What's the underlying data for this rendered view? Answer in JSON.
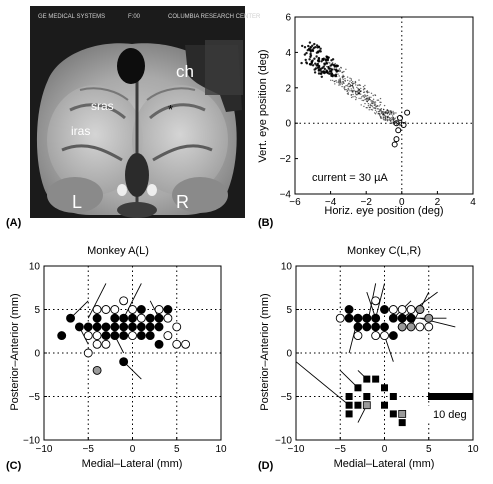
{
  "panels": {
    "A": {
      "label": "(A)",
      "header_left": "GE MEDICAL SYSTEMS",
      "header_mid": "F:00",
      "header_right": "COLUMBIA RESEARCH CENTER",
      "annotations": [
        "ch",
        "sras",
        "iras",
        "*",
        "L",
        "R"
      ]
    },
    "B": {
      "label": "(B)",
      "current_text": "current = 30 µA"
    },
    "C": {
      "label": "(C)"
    },
    "D": {
      "label": "(D)",
      "scale_bar_text": "10 deg"
    }
  },
  "chart_data": [
    {
      "panel": "B",
      "type": "scatter",
      "xlabel": "Horiz. eye position (deg)",
      "ylabel": "Vert. eye position (deg)",
      "xlim": [
        -6,
        4
      ],
      "ylim": [
        -4,
        6
      ],
      "xticks": [
        -6,
        -4,
        -2,
        0,
        2,
        4
      ],
      "yticks": [
        -4,
        -2,
        0,
        2,
        4,
        6
      ],
      "reference_lines": "dotted lines at x = 0 and y = 0",
      "evoked_endpoints_cluster": {
        "from": [
          -0.2,
          0.0
        ],
        "to": [
          -5.2,
          4.0
        ],
        "marker": "small dots"
      },
      "fixation_points": [
        [
          0.3,
          0.6
        ],
        [
          -0.1,
          0.3
        ],
        [
          -0.2,
          -0.4
        ],
        [
          -0.3,
          -0.9
        ],
        [
          -0.4,
          -1.2
        ],
        [
          0.1,
          -0.1
        ],
        [
          -0.3,
          0.0
        ]
      ]
    },
    {
      "panel": "C",
      "type": "scatter",
      "title": "Monkey A(L)",
      "xlabel": "Medial–Lateral (mm)",
      "ylabel": "Posterior–Anterior (mm)",
      "xlim": [
        -10,
        10
      ],
      "ylim": [
        -10,
        10
      ],
      "xticks": [
        -10,
        -5,
        0,
        5,
        10
      ],
      "yticks": [
        -10,
        -5,
        0,
        5,
        10
      ],
      "grid": "dotted",
      "filled": [
        [
          -8,
          2
        ],
        [
          -7,
          4
        ],
        [
          -6,
          3
        ],
        [
          -5,
          3
        ],
        [
          -4,
          4
        ],
        [
          -4,
          3
        ],
        [
          -3,
          3
        ],
        [
          -2,
          4
        ],
        [
          -2,
          3
        ],
        [
          -1,
          4
        ],
        [
          -1,
          3
        ],
        [
          0,
          3
        ],
        [
          0,
          4
        ],
        [
          1,
          3
        ],
        [
          1,
          5
        ],
        [
          2,
          4
        ],
        [
          2,
          3
        ],
        [
          3,
          4
        ],
        [
          3,
          3
        ],
        [
          4,
          5
        ],
        [
          -3,
          2
        ],
        [
          -2,
          2
        ],
        [
          -1,
          2
        ],
        [
          1,
          2
        ],
        [
          2,
          2
        ],
        [
          3,
          1
        ],
        [
          -1,
          -1
        ]
      ],
      "open": [
        [
          -1,
          6
        ],
        [
          -4,
          5
        ],
        [
          -3,
          5
        ],
        [
          -2,
          5
        ],
        [
          0,
          5
        ],
        [
          1,
          4
        ],
        [
          4,
          4
        ],
        [
          5,
          3
        ],
        [
          4,
          2
        ],
        [
          -5,
          2
        ],
        [
          -4,
          1
        ],
        [
          -5,
          0
        ],
        [
          -3,
          1
        ],
        [
          0,
          2
        ],
        [
          5,
          1
        ],
        [
          6,
          1
        ],
        [
          3,
          5
        ],
        [
          -4,
          2
        ]
      ],
      "gray": [
        [
          -4,
          -2
        ]
      ],
      "vectors": [
        [
          [
            -5,
            4
          ],
          [
            -3,
            8
          ]
        ],
        [
          [
            -7,
            4
          ],
          [
            -5,
            6
          ]
        ],
        [
          [
            -1,
            4
          ],
          [
            1,
            8
          ]
        ],
        [
          [
            -6,
            3
          ],
          [
            -5,
            1
          ]
        ],
        [
          [
            -2,
            2
          ],
          [
            -1,
            0
          ]
        ],
        [
          [
            -1,
            -1
          ],
          [
            1,
            -3
          ]
        ],
        [
          [
            3,
            4
          ],
          [
            2,
            6
          ]
        ],
        [
          [
            -1,
            2
          ],
          [
            0,
            2
          ]
        ]
      ]
    },
    {
      "panel": "D",
      "type": "scatter",
      "title": "Monkey C(L,R)",
      "xlabel": "Medial–Lateral (mm)",
      "ylabel": "Posterior–Anterior (mm)",
      "xlim": [
        -10,
        10
      ],
      "ylim": [
        -10,
        10
      ],
      "xticks": [
        -10,
        -5,
        0,
        5,
        10
      ],
      "yticks": [
        -10,
        -5,
        0,
        5,
        10
      ],
      "grid": "dotted",
      "filled": [
        [
          -4,
          4
        ],
        [
          -3,
          4
        ],
        [
          -2,
          4
        ],
        [
          -1,
          4
        ],
        [
          0,
          5
        ],
        [
          1,
          4
        ],
        [
          0,
          3
        ],
        [
          -2,
          3
        ],
        [
          -1,
          3
        ],
        [
          -3,
          3
        ],
        [
          2,
          4
        ],
        [
          3,
          4
        ],
        [
          -4,
          5
        ],
        [
          1,
          2
        ]
      ],
      "open": [
        [
          -5,
          4
        ],
        [
          -1,
          6
        ],
        [
          1,
          5
        ],
        [
          2,
          5
        ],
        [
          3,
          4
        ],
        [
          4,
          5
        ],
        [
          -1,
          2
        ],
        [
          0,
          2
        ],
        [
          4,
          3
        ],
        [
          5,
          3
        ],
        [
          -3,
          2
        ],
        [
          3,
          5
        ],
        [
          2,
          3
        ]
      ],
      "gray": [
        [
          4,
          5
        ],
        [
          3,
          3
        ],
        [
          5,
          4
        ],
        [
          -2,
          4
        ],
        [
          2,
          3
        ]
      ],
      "squares_filled": [
        [
          -2,
          -3
        ],
        [
          -1,
          -3
        ],
        [
          -3,
          -4
        ],
        [
          0,
          -4
        ],
        [
          -4,
          -5
        ],
        [
          -2,
          -5
        ],
        [
          1,
          -5
        ],
        [
          -4,
          -6
        ],
        [
          -3,
          -6
        ],
        [
          -2,
          -6
        ],
        [
          0,
          -6
        ],
        [
          1,
          -7
        ],
        [
          -4,
          -7
        ],
        [
          2,
          -8
        ]
      ],
      "squares_gray": [
        [
          -2,
          -6
        ],
        [
          2,
          -7
        ]
      ],
      "vectors": [
        [
          [
            -4,
            -6
          ],
          [
            -10,
            -1
          ]
        ],
        [
          [
            -2,
            -3
          ],
          [
            -3,
            -2
          ]
        ],
        [
          [
            -2,
            3
          ],
          [
            -1,
            8
          ]
        ],
        [
          [
            -1,
            4
          ],
          [
            0,
            8
          ]
        ],
        [
          [
            1,
            4
          ],
          [
            3,
            6
          ]
        ],
        [
          [
            2,
            4
          ],
          [
            6,
            7
          ]
        ],
        [
          [
            3,
            4
          ],
          [
            7,
            4
          ]
        ],
        [
          [
            3,
            3
          ],
          [
            5,
            7
          ]
        ],
        [
          [
            4,
            4
          ],
          [
            8,
            3
          ]
        ],
        [
          [
            -3,
            -4
          ],
          [
            -5,
            -2
          ]
        ],
        [
          [
            -1,
            4
          ],
          [
            -2,
            7
          ]
        ],
        [
          [
            0,
            2
          ],
          [
            1,
            -1
          ]
        ],
        [
          [
            -3,
            4
          ],
          [
            -4,
            0
          ]
        ],
        [
          [
            -2,
            -6
          ],
          [
            -3,
            -8
          ]
        ]
      ]
    }
  ]
}
